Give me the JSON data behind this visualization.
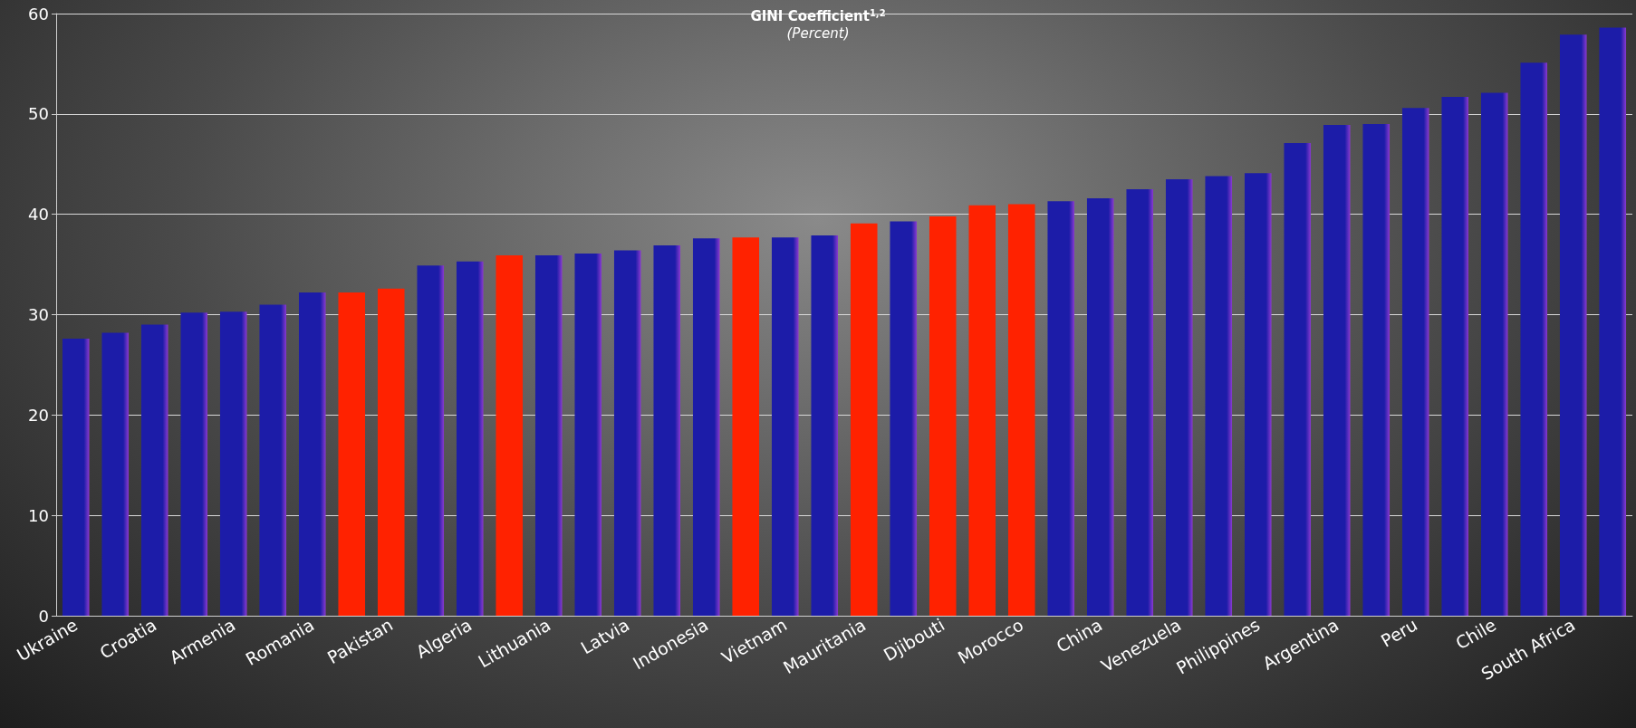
{
  "chart_data": {
    "type": "bar",
    "title": "GINI Coefficient$^{1,2}$",
    "subtitle": "(Percent)",
    "categories": [
      "Ukraine",
      null,
      "Croatia",
      null,
      "Armenia",
      null,
      "Romania",
      null,
      "Pakistan",
      null,
      "Algeria",
      null,
      "Lithuania",
      null,
      "Latvia",
      null,
      "Indonesia",
      null,
      "Vietnam",
      null,
      "Mauritania",
      null,
      "Djibouti",
      null,
      "Morocco",
      null,
      "China",
      null,
      "Venezuela",
      null,
      "Philippines",
      null,
      "Argentina",
      null,
      "Peru",
      null,
      "Chile",
      null,
      "South Africa",
      null
    ],
    "values": [
      27.6,
      28.2,
      29.0,
      30.2,
      30.3,
      31.0,
      32.2,
      32.2,
      32.6,
      34.9,
      35.3,
      35.9,
      35.9,
      36.1,
      36.4,
      36.9,
      37.6,
      37.7,
      37.7,
      37.9,
      39.1,
      39.3,
      39.8,
      40.9,
      41.0,
      41.3,
      41.6,
      42.5,
      43.5,
      43.8,
      44.1,
      47.1,
      48.9,
      49.0,
      50.6,
      51.7,
      52.1,
      55.1,
      57.9,
      58.6
    ],
    "colors": [
      "#1c1ca8",
      "#1c1ca8",
      "#1c1ca8",
      "#1c1ca8",
      "#1c1ca8",
      "#1c1ca8",
      "#1c1ca8",
      "#ff2200",
      "#ff2200",
      "#1c1ca8",
      "#1c1ca8",
      "#ff2200",
      "#1c1ca8",
      "#1c1ca8",
      "#1c1ca8",
      "#1c1ca8",
      "#1c1ca8",
      "#ff2200",
      "#1c1ca8",
      "#1c1ca8",
      "#ff2200",
      "#1c1ca8",
      "#ff2200",
      "#ff2200",
      "#ff2200",
      "#1c1ca8",
      "#1c1ca8",
      "#1c1ca8",
      "#1c1ca8",
      "#1c1ca8",
      "#1c1ca8",
      "#1c1ca8",
      "#1c1ca8",
      "#1c1ca8",
      "#1c1ca8",
      "#1c1ca8",
      "#1c1ca8",
      "#1c1ca8",
      "#1c1ca8",
      "#1c1ca8"
    ],
    "ylim": [
      0,
      60
    ],
    "yticks": [
      0,
      10,
      20,
      30,
      40,
      50,
      60
    ],
    "grid": "y"
  }
}
